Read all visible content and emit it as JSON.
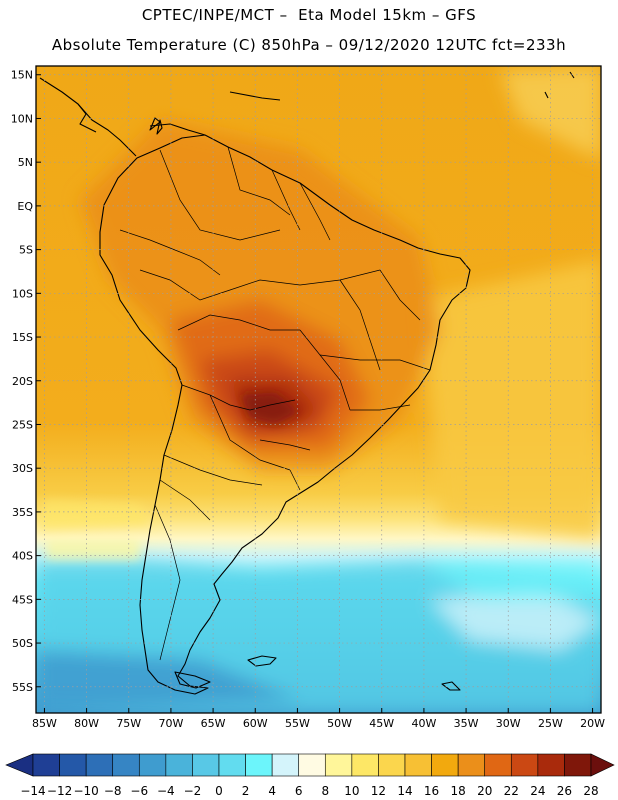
{
  "header": {
    "line1": "CPTEC/INPE/MCT –  Eta Model 15km – GFS",
    "line2": "Absolute Temperature (C) 850hPa – 09/12/2020 12UTC fct=233h"
  },
  "map": {
    "lon_range": [
      -86,
      -19
    ],
    "lat_range": [
      -58,
      16
    ],
    "lat_ticks": [
      {
        "value": 15,
        "label": "15N"
      },
      {
        "value": 10,
        "label": "10N"
      },
      {
        "value": 5,
        "label": "5N"
      },
      {
        "value": 0,
        "label": "EQ"
      },
      {
        "value": -5,
        "label": "5S"
      },
      {
        "value": -10,
        "label": "10S"
      },
      {
        "value": -15,
        "label": "15S"
      },
      {
        "value": -20,
        "label": "20S"
      },
      {
        "value": -25,
        "label": "25S"
      },
      {
        "value": -30,
        "label": "30S"
      },
      {
        "value": -35,
        "label": "35S"
      },
      {
        "value": -40,
        "label": "40S"
      },
      {
        "value": -45,
        "label": "45S"
      },
      {
        "value": -50,
        "label": "50S"
      },
      {
        "value": -55,
        "label": "55S"
      }
    ],
    "lon_ticks": [
      {
        "value": -85,
        "label": "85W"
      },
      {
        "value": -80,
        "label": "80W"
      },
      {
        "value": -75,
        "label": "75W"
      },
      {
        "value": -70,
        "label": "70W"
      },
      {
        "value": -65,
        "label": "65W"
      },
      {
        "value": -60,
        "label": "60W"
      },
      {
        "value": -55,
        "label": "55W"
      },
      {
        "value": -50,
        "label": "50W"
      },
      {
        "value": -45,
        "label": "45W"
      },
      {
        "value": -40,
        "label": "40W"
      },
      {
        "value": -35,
        "label": "35W"
      },
      {
        "value": -30,
        "label": "30W"
      },
      {
        "value": -25,
        "label": "25W"
      },
      {
        "value": -20,
        "label": "20W"
      }
    ],
    "gridlines": "dotted"
  },
  "colorbar": {
    "labels": [
      "-14",
      "-12",
      "-10",
      "-8",
      "-6",
      "-4",
      "-2",
      "0",
      "2",
      "4",
      "6",
      "8",
      "10",
      "12",
      "14",
      "16",
      "18",
      "20",
      "22",
      "24",
      "26",
      "28"
    ],
    "colors": [
      "#1f3f95",
      "#2458a8",
      "#2d6fb7",
      "#3685c4",
      "#3f9ccf",
      "#4ab3da",
      "#58c8e6",
      "#62dcef",
      "#6cf5fb",
      "#d4f4fb",
      "#fffbe3",
      "#fff69a",
      "#fde766",
      "#fbd64d",
      "#f7c034",
      "#f2a90e",
      "#eb8f1a",
      "#e06714",
      "#cb4813",
      "#a92a0c",
      "#7f170a"
    ],
    "under_color": "#1a2f82",
    "over_color": "#6b0f0d"
  }
}
